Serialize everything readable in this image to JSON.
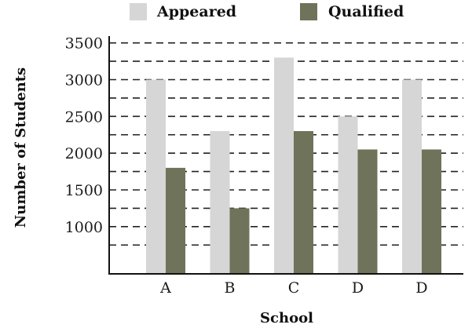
{
  "chart_data": {
    "type": "bar",
    "categories": [
      "A",
      "B",
      "C",
      "D",
      "D"
    ],
    "series": [
      {
        "name": "Appeared",
        "values": [
          3000,
          2300,
          3300,
          2500,
          3000
        ],
        "color": "#d6d6d6"
      },
      {
        "name": "Qualified",
        "values": [
          1800,
          1250,
          2300,
          2050,
          2050
        ],
        "color": "#6f735a"
      }
    ],
    "title": "",
    "xlabel": "School",
    "ylabel": "Number of Students",
    "yticks": [
      1000,
      1500,
      2000,
      2500,
      3000,
      3500
    ],
    "ylim": [
      500,
      3550
    ],
    "grid": "dashed horizontal",
    "legend_position": "top"
  }
}
